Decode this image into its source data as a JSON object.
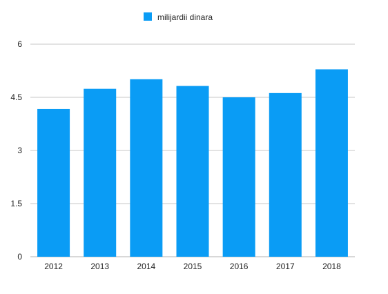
{
  "chart_data": {
    "type": "bar",
    "title": "",
    "xlabel": "",
    "ylabel": "",
    "categories": [
      "2012",
      "2013",
      "2014",
      "2015",
      "2016",
      "2017",
      "2018"
    ],
    "series": [
      {
        "name": "milijardii dinara",
        "values": [
          4.17,
          4.74,
          5.01,
          4.82,
          4.5,
          4.62,
          5.29
        ],
        "color": "#0a9cf5"
      }
    ],
    "ylim": [
      0,
      6
    ],
    "yticks": [
      0,
      1.5,
      3,
      4.5,
      6
    ],
    "ytick_labels": [
      "0",
      "1.5",
      "3",
      "4.5",
      "6"
    ],
    "grid": true,
    "grid_color": "#c7c7c7",
    "axis_color": "#b0b0b0",
    "legend_position": "top"
  }
}
